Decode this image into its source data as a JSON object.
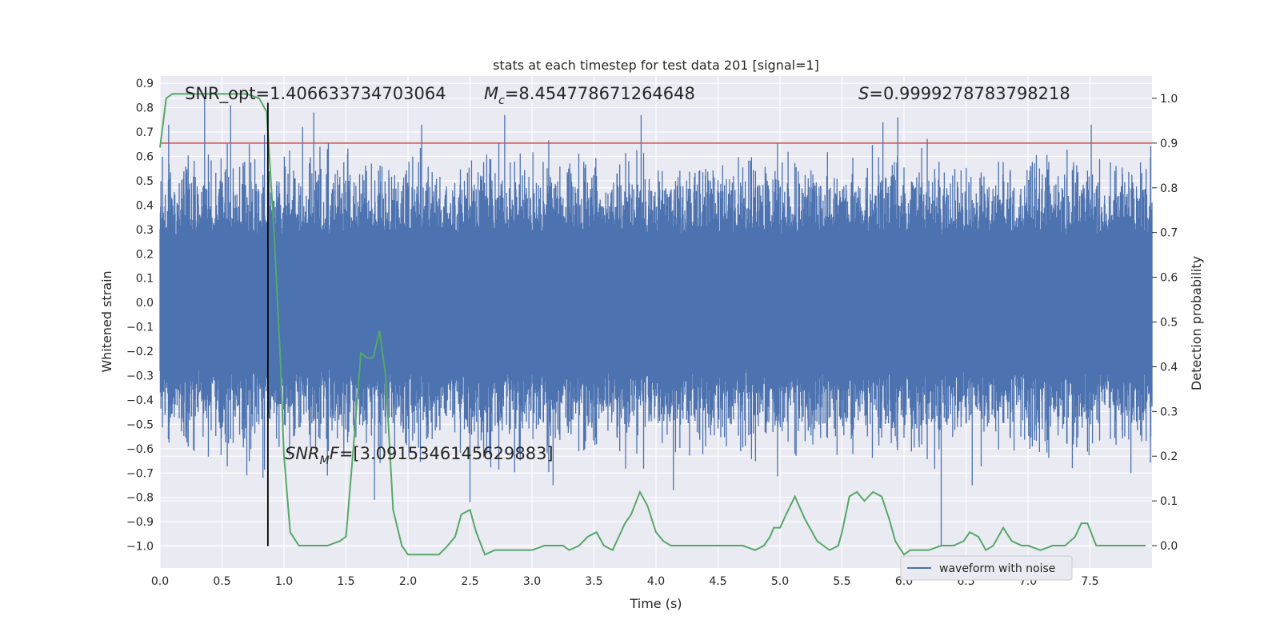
{
  "chart_data": {
    "type": "line",
    "title": "stats at each timestep for test data 201 [signal=1]",
    "xlabel": "Time (s)",
    "ylabel": "Whitened strain",
    "y2label": "Detection probability",
    "xlim": [
      0.0,
      8.0
    ],
    "ylim": [
      -1.09,
      0.93
    ],
    "y2lim": [
      -0.05,
      1.05
    ],
    "xticks": [
      "0.0",
      "0.5",
      "1.0",
      "1.5",
      "2.0",
      "2.5",
      "3.0",
      "3.5",
      "4.0",
      "4.5",
      "5.0",
      "5.5",
      "6.0",
      "6.5",
      "7.0",
      "7.5"
    ],
    "yticks": [
      "0.9",
      "0.8",
      "0.7",
      "0.6",
      "0.5",
      "0.4",
      "0.3",
      "0.2",
      "0.1",
      "0.0",
      "-0.1",
      "-0.2",
      "-0.3",
      "-0.4",
      "-0.5",
      "-0.6",
      "-0.7",
      "-0.8",
      "-0.9",
      "-1.0"
    ],
    "y2ticks": [
      "1.0",
      "0.9",
      "0.8",
      "0.7",
      "0.6",
      "0.5",
      "0.4",
      "0.3",
      "0.2",
      "0.1",
      "0.0"
    ],
    "grid": true,
    "legend_position": "lower-right",
    "series": [
      {
        "name": "waveform with noise",
        "axis": "left",
        "color": "#4c72b0",
        "description_level": "dense noise band",
        "envelope_peaks": [
          {
            "x": 0.07,
            "y": 0.73
          },
          {
            "x": 0.36,
            "y": 0.84
          },
          {
            "x": 0.57,
            "y": 0.81
          },
          {
            "x": 1.15,
            "y": 0.72
          },
          {
            "x": 1.24,
            "y": 0.78
          },
          {
            "x": 2.11,
            "y": 0.73
          },
          {
            "x": 2.78,
            "y": 0.77
          },
          {
            "x": 3.88,
            "y": 0.77
          },
          {
            "x": 5.83,
            "y": 0.74
          },
          {
            "x": 5.95,
            "y": 0.76
          },
          {
            "x": 7.51,
            "y": 0.73
          }
        ],
        "envelope_troughs": [
          {
            "x": 0.7,
            "y": -0.71
          },
          {
            "x": 0.83,
            "y": -0.72
          },
          {
            "x": 1.73,
            "y": -0.81
          },
          {
            "x": 2.5,
            "y": -0.82
          },
          {
            "x": 3.17,
            "y": -0.75
          },
          {
            "x": 4.14,
            "y": -0.77
          },
          {
            "x": 6.3,
            "y": -1.0
          },
          {
            "x": 6.55,
            "y": -0.75
          },
          {
            "x": 7.83,
            "y": -0.7
          }
        ]
      },
      {
        "name": "",
        "axis": "right",
        "color": "#55a868",
        "x": [
          0.0,
          0.05,
          0.1,
          0.2,
          0.3,
          0.4,
          0.5,
          0.6,
          0.7,
          0.8,
          0.86,
          0.92,
          0.97,
          1.0,
          1.05,
          1.12,
          1.18,
          1.25,
          1.35,
          1.45,
          1.5,
          1.56,
          1.62,
          1.67,
          1.72,
          1.77,
          1.82,
          1.88,
          1.95,
          2.0,
          2.07,
          2.15,
          2.25,
          2.32,
          2.38,
          2.43,
          2.5,
          2.55,
          2.62,
          2.7,
          2.8,
          2.9,
          3.0,
          3.1,
          3.2,
          3.25,
          3.3,
          3.38,
          3.45,
          3.52,
          3.58,
          3.65,
          3.7,
          3.75,
          3.8,
          3.87,
          3.93,
          4.0,
          4.06,
          4.12,
          4.2,
          4.3,
          4.5,
          4.7,
          4.8,
          4.87,
          4.92,
          4.95,
          5.0,
          5.05,
          5.12,
          5.2,
          5.3,
          5.4,
          5.47,
          5.5,
          5.56,
          5.62,
          5.68,
          5.75,
          5.82,
          5.88,
          5.93,
          6.0,
          6.05,
          6.1,
          6.2,
          6.3,
          6.4,
          6.48,
          6.53,
          6.6,
          6.66,
          6.72,
          6.8,
          6.87,
          6.95,
          7.0,
          7.1,
          7.2,
          7.3,
          7.38,
          7.43,
          7.48,
          7.55,
          7.65,
          7.85,
          7.95
        ],
        "values": [
          0.89,
          1.0,
          1.01,
          1.01,
          1.01,
          1.01,
          1.01,
          1.01,
          1.01,
          1.0,
          0.97,
          0.7,
          0.42,
          0.2,
          0.03,
          0.0,
          0.0,
          0.0,
          0.0,
          0.01,
          0.02,
          0.22,
          0.43,
          0.42,
          0.42,
          0.48,
          0.38,
          0.08,
          -0.0,
          -0.02,
          -0.02,
          -0.02,
          -0.02,
          0.0,
          0.02,
          0.07,
          0.08,
          0.03,
          -0.02,
          -0.01,
          -0.01,
          -0.01,
          -0.01,
          0.0,
          0.0,
          0.0,
          -0.01,
          0.0,
          0.02,
          0.03,
          0.0,
          -0.01,
          0.02,
          0.05,
          0.07,
          0.12,
          0.09,
          0.03,
          0.01,
          -0.0,
          -0.0,
          -0.0,
          -0.0,
          -0.0,
          -0.01,
          0.0,
          0.02,
          0.04,
          0.04,
          0.07,
          0.11,
          0.06,
          0.01,
          -0.01,
          0.0,
          0.03,
          0.11,
          0.12,
          0.1,
          0.12,
          0.11,
          0.06,
          0.01,
          -0.02,
          -0.01,
          -0.01,
          -0.01,
          -0.0,
          0.0,
          0.01,
          0.03,
          0.02,
          -0.01,
          0.0,
          0.04,
          0.01,
          0.0,
          -0.0,
          -0.01,
          -0.0,
          0.0,
          0.02,
          0.05,
          0.05,
          0.0,
          -0.0,
          -0.0,
          -0.0
        ]
      }
    ],
    "threshold": {
      "axis": "right",
      "value": 0.9,
      "color": "#c44e52"
    },
    "vline": {
      "x": 0.87,
      "ymin": -1.0,
      "ymax": 0.82,
      "color": "#000000"
    },
    "annotations": [
      {
        "kind": "plain",
        "text": "SNR_opt=1.406633734703064"
      },
      {
        "kind": "math",
        "base": "M",
        "sub": "c",
        "rest": "=8.454778671264648"
      },
      {
        "kind": "math",
        "base": "S",
        "sub": "",
        "rest": "=0.9999278783798218"
      },
      {
        "kind": "math",
        "base": "SNR",
        "sub": "M",
        "italic_after": "F",
        "rest": "=[3.0915346145629883]"
      }
    ]
  }
}
